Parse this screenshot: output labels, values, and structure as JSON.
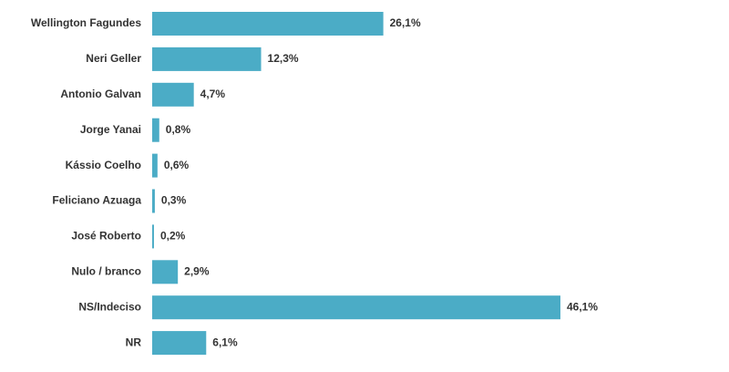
{
  "chart_data": {
    "type": "bar",
    "orientation": "horizontal",
    "categories": [
      "Wellington Fagundes",
      "Neri Geller",
      "Antonio Galvan",
      "Jorge Yanai",
      "Kássio Coelho",
      "Feliciano Azuaga",
      "José Roberto",
      "Nulo / branco",
      "NS/Indeciso",
      "NR"
    ],
    "values": [
      26.1,
      12.3,
      4.7,
      0.8,
      0.6,
      0.3,
      0.2,
      2.9,
      46.1,
      6.1
    ],
    "value_labels": [
      "26,1%",
      "12,3%",
      "4,7%",
      "0,8%",
      "0,6%",
      "0,3%",
      "0,2%",
      "2,9%",
      "46,1%",
      "6,1%"
    ],
    "color": "#4bacc6"
  }
}
